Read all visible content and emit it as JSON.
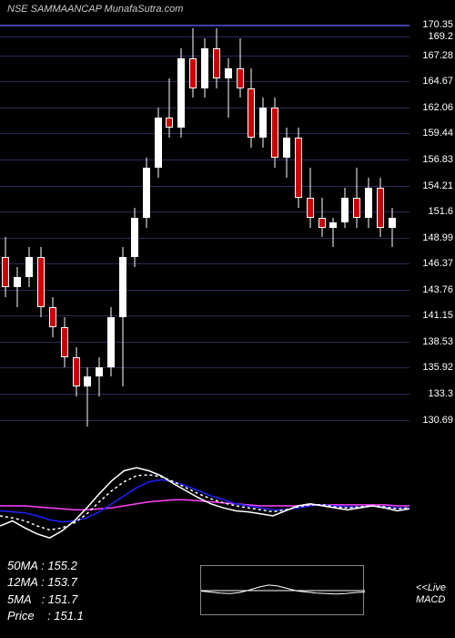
{
  "header": {
    "title": "NSE SAMMAANCAP MunafaSutra.com"
  },
  "chart": {
    "type": "candlestick",
    "background_color": "#000000",
    "grid_color": "#2a2a5a",
    "top_border_color": "#4040a0",
    "ymin": 128,
    "ymax": 171,
    "price_levels": [
      {
        "value": 170.35,
        "label": "170.35"
      },
      {
        "value": 169.2,
        "label": "169.2"
      },
      {
        "value": 167.28,
        "label": "167.28"
      },
      {
        "value": 164.67,
        "label": "164.67"
      },
      {
        "value": 162.06,
        "label": "162.06"
      },
      {
        "value": 159.44,
        "label": "159.44"
      },
      {
        "value": 156.83,
        "label": "156.83"
      },
      {
        "value": 154.21,
        "label": "154.21"
      },
      {
        "value": 151.6,
        "label": "151.6"
      },
      {
        "value": 148.99,
        "label": "148.99"
      },
      {
        "value": 146.37,
        "label": "146.37"
      },
      {
        "value": 143.76,
        "label": "143.76"
      },
      {
        "value": 141.15,
        "label": "141.15"
      },
      {
        "value": 138.53,
        "label": "138.53"
      },
      {
        "value": 135.92,
        "label": "135.92"
      },
      {
        "value": 133.3,
        "label": "133.3"
      },
      {
        "value": 130.69,
        "label": "130.69"
      }
    ],
    "candles": [
      {
        "x": 0,
        "open": 147,
        "high": 149,
        "low": 143,
        "close": 144,
        "dir": "down"
      },
      {
        "x": 1,
        "open": 144,
        "high": 146,
        "low": 142,
        "close": 145,
        "dir": "up"
      },
      {
        "x": 2,
        "open": 145,
        "high": 148,
        "low": 144,
        "close": 147,
        "dir": "up"
      },
      {
        "x": 3,
        "open": 147,
        "high": 148,
        "low": 141,
        "close": 142,
        "dir": "down"
      },
      {
        "x": 4,
        "open": 142,
        "high": 143,
        "low": 139,
        "close": 140,
        "dir": "down"
      },
      {
        "x": 5,
        "open": 140,
        "high": 141,
        "low": 136,
        "close": 137,
        "dir": "down"
      },
      {
        "x": 6,
        "open": 137,
        "high": 138,
        "low": 133,
        "close": 134,
        "dir": "down"
      },
      {
        "x": 7,
        "open": 134,
        "high": 136,
        "low": 130,
        "close": 135,
        "dir": "up"
      },
      {
        "x": 8,
        "open": 135,
        "high": 137,
        "low": 133,
        "close": 136,
        "dir": "up"
      },
      {
        "x": 9,
        "open": 136,
        "high": 142,
        "low": 135,
        "close": 141,
        "dir": "up"
      },
      {
        "x": 10,
        "open": 141,
        "high": 148,
        "low": 134,
        "close": 147,
        "dir": "up"
      },
      {
        "x": 11,
        "open": 147,
        "high": 152,
        "low": 146,
        "close": 151,
        "dir": "up"
      },
      {
        "x": 12,
        "open": 151,
        "high": 157,
        "low": 150,
        "close": 156,
        "dir": "up"
      },
      {
        "x": 13,
        "open": 156,
        "high": 162,
        "low": 155,
        "close": 161,
        "dir": "up"
      },
      {
        "x": 14,
        "open": 161,
        "high": 165,
        "low": 159,
        "close": 160,
        "dir": "down"
      },
      {
        "x": 15,
        "open": 160,
        "high": 168,
        "low": 159,
        "close": 167,
        "dir": "up"
      },
      {
        "x": 16,
        "open": 167,
        "high": 170,
        "low": 163,
        "close": 164,
        "dir": "down"
      },
      {
        "x": 17,
        "open": 164,
        "high": 169,
        "low": 163,
        "close": 168,
        "dir": "up"
      },
      {
        "x": 18,
        "open": 168,
        "high": 170,
        "low": 164,
        "close": 165,
        "dir": "down"
      },
      {
        "x": 19,
        "open": 165,
        "high": 167,
        "low": 161,
        "close": 166,
        "dir": "up"
      },
      {
        "x": 20,
        "open": 166,
        "high": 169,
        "low": 163,
        "close": 164,
        "dir": "down"
      },
      {
        "x": 21,
        "open": 164,
        "high": 166,
        "low": 158,
        "close": 159,
        "dir": "down"
      },
      {
        "x": 22,
        "open": 159,
        "high": 163,
        "low": 158,
        "close": 162,
        "dir": "up"
      },
      {
        "x": 23,
        "open": 162,
        "high": 163,
        "low": 156,
        "close": 157,
        "dir": "down"
      },
      {
        "x": 24,
        "open": 157,
        "high": 160,
        "low": 155,
        "close": 159,
        "dir": "up"
      },
      {
        "x": 25,
        "open": 159,
        "high": 160,
        "low": 152,
        "close": 153,
        "dir": "down"
      },
      {
        "x": 26,
        "open": 153,
        "high": 156,
        "low": 150,
        "close": 151,
        "dir": "down"
      },
      {
        "x": 27,
        "open": 151,
        "high": 153,
        "low": 149,
        "close": 150,
        "dir": "down"
      },
      {
        "x": 28,
        "open": 150,
        "high": 151,
        "low": 148,
        "close": 150.5,
        "dir": "up"
      },
      {
        "x": 29,
        "open": 150.5,
        "high": 154,
        "low": 150,
        "close": 153,
        "dir": "up"
      },
      {
        "x": 30,
        "open": 153,
        "high": 156,
        "low": 150,
        "close": 151,
        "dir": "down"
      },
      {
        "x": 31,
        "open": 151,
        "high": 155,
        "low": 150,
        "close": 154,
        "dir": "up"
      },
      {
        "x": 32,
        "open": 154,
        "high": 155,
        "low": 149,
        "close": 150,
        "dir": "down"
      },
      {
        "x": 33,
        "open": 150,
        "high": 152,
        "low": 148,
        "close": 151,
        "dir": "up"
      }
    ],
    "up_color": "#ffffff",
    "down_color": "#cc0000",
    "wick_color": "#ffffff"
  },
  "indicator": {
    "white_line": [
      30,
      35,
      28,
      22,
      18,
      25,
      35,
      48,
      62,
      75,
      85,
      88,
      85,
      80,
      72,
      65,
      58,
      52,
      48,
      45,
      44,
      42,
      40,
      45,
      50,
      52,
      50,
      48,
      46,
      48,
      50,
      48,
      45,
      47
    ],
    "blue_line": [
      45,
      44,
      43,
      40,
      36,
      34,
      35,
      38,
      44,
      52,
      60,
      68,
      74,
      76,
      74,
      70,
      65,
      60,
      56,
      52,
      50,
      48,
      46,
      46,
      48,
      50,
      51,
      50,
      49,
      49,
      50,
      49,
      48,
      48
    ],
    "magenta_line": [
      50,
      50,
      50,
      49,
      48,
      47,
      46,
      46,
      47,
      48,
      50,
      52,
      54,
      55,
      56,
      56,
      55,
      54,
      53,
      52,
      51,
      50,
      50,
      50,
      50,
      51,
      51,
      51,
      51,
      51,
      51,
      51,
      50,
      50
    ],
    "dashed_line": [
      40,
      38,
      35,
      30,
      26,
      28,
      33,
      42,
      54,
      65,
      74,
      80,
      81,
      79,
      74,
      68,
      62,
      57,
      53,
      50,
      48,
      46,
      44,
      46,
      49,
      51,
      51,
      49,
      48,
      49,
      50,
      49,
      47,
      48
    ],
    "white_color": "#ffffff",
    "blue_color": "#2020ff",
    "magenta_color": "#ff40ff",
    "dashed_color": "#ffffff"
  },
  "info": {
    "ma50_label": "50MA",
    "ma50_value": "155.2",
    "ma12_label": "12MA",
    "ma12_value": "153.7",
    "ma5_label": "5MA",
    "ma5_value": "151.7",
    "price_label": "Price",
    "price_value": "151.1"
  },
  "macd": {
    "label_line1": "<<Live",
    "label_line2": "MACD",
    "zero_line_color": "#ffffff",
    "signal": [
      50,
      48,
      46,
      45,
      47,
      52,
      58,
      62,
      60,
      55,
      50,
      48,
      46,
      45,
      44,
      45,
      47,
      48
    ]
  }
}
